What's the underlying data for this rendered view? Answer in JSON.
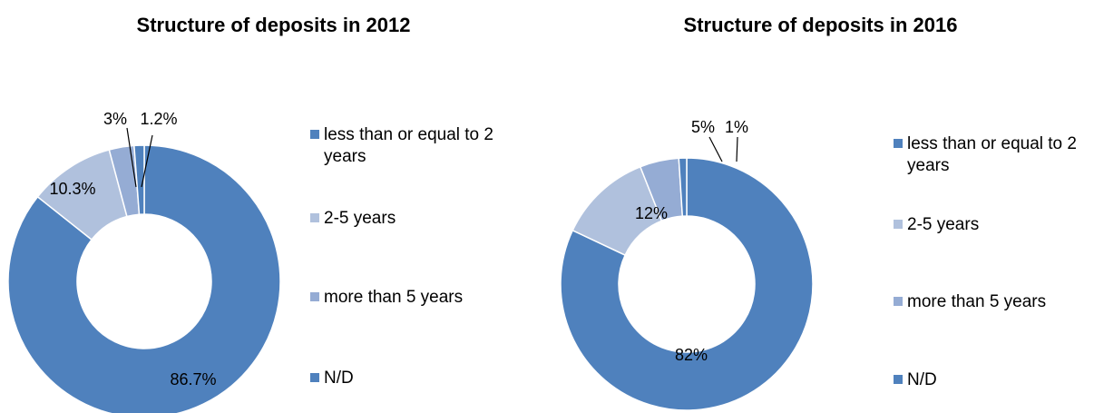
{
  "chart_data": [
    {
      "type": "pie",
      "title": "Structure of deposits in 2012",
      "categories": [
        "less than or equal to 2 years",
        "2-5 years",
        "more than 5 years",
        "N/D"
      ],
      "values": [
        86.7,
        10.3,
        3,
        1.2
      ],
      "data_labels": [
        "86.7%",
        "10.3%",
        "3%",
        "1.2%"
      ],
      "colors": [
        "#4f81bd",
        "#b0c1dd",
        "#95acd4",
        "#4f81bd"
      ],
      "donut": true,
      "legend": "right"
    },
    {
      "type": "pie",
      "title": "Structure of deposits in 2016",
      "categories": [
        "less than or equal to 2 years",
        "2-5 years",
        "more than 5 years",
        "N/D"
      ],
      "values": [
        82,
        12,
        5,
        1
      ],
      "data_labels": [
        "82%",
        "12%",
        "5%",
        "1%"
      ],
      "colors": [
        "#4f81bd",
        "#b0c1dd",
        "#95acd4",
        "#4f81bd"
      ],
      "donut": true,
      "legend": "right"
    }
  ]
}
